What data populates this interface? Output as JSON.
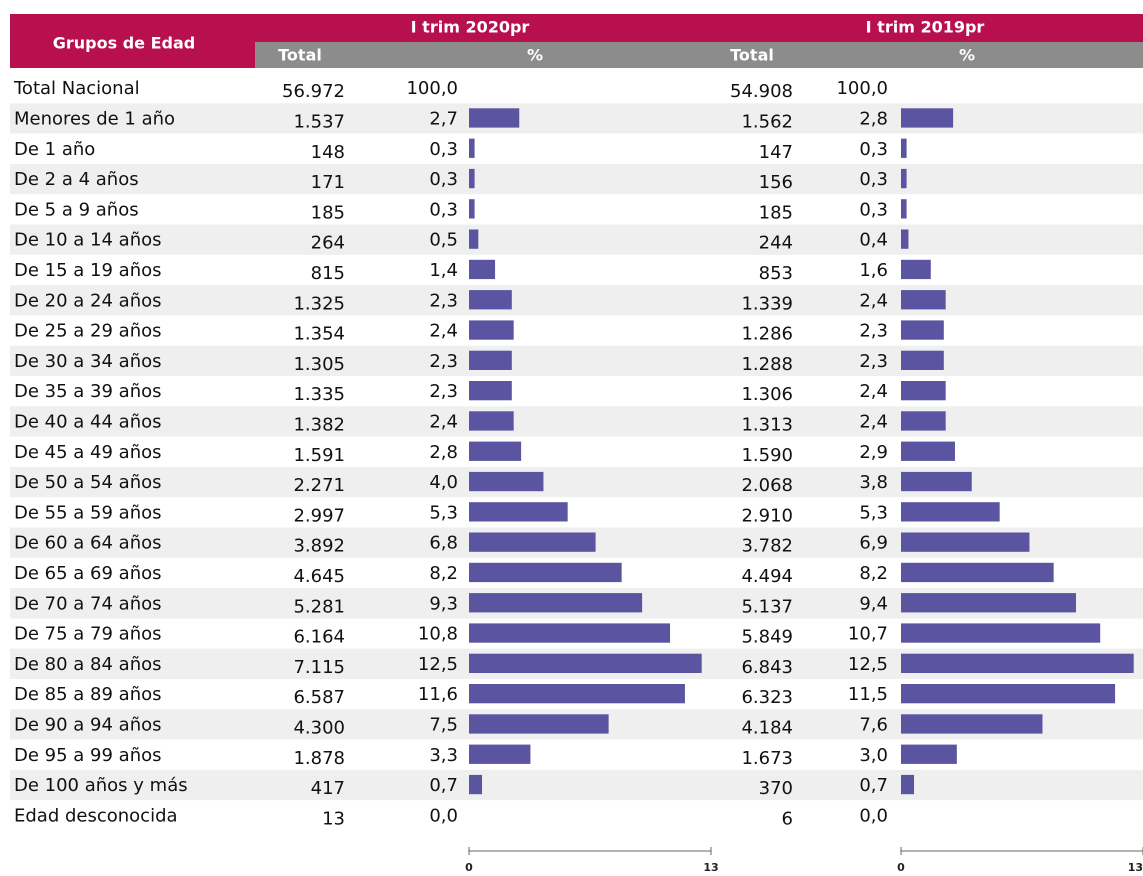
{
  "table": {
    "header": {
      "group": "Grupos de Edad",
      "period_2020": "I trim 2020pr",
      "period_2019": "I trim 2019pr",
      "total": "Total",
      "pct": "%"
    },
    "bar_axis_ticks": [
      0,
      13
    ],
    "bar_color": "#5b55a1",
    "rows": [
      {
        "group": "Total Nacional",
        "total_2020": "56.972",
        "pct_2020": 100,
        "pct_2020_label": "100,0",
        "total_2019": "54.908",
        "pct_2019": 100,
        "pct_2019_label": "100,0"
      },
      {
        "group": "Menores de 1 año",
        "total_2020": "1.537",
        "pct_2020": 2.7,
        "pct_2020_label": "2,7",
        "total_2019": "1.562",
        "pct_2019": 2.8,
        "pct_2019_label": "2,8"
      },
      {
        "group": "De 1 año",
        "total_2020": "148",
        "pct_2020": 0.3,
        "pct_2020_label": "0,3",
        "total_2019": "147",
        "pct_2019": 0.3,
        "pct_2019_label": "0,3"
      },
      {
        "group": "De 2 a 4 años",
        "total_2020": "171",
        "pct_2020": 0.3,
        "pct_2020_label": "0,3",
        "total_2019": "156",
        "pct_2019": 0.3,
        "pct_2019_label": "0,3"
      },
      {
        "group": "De 5 a 9 años",
        "total_2020": "185",
        "pct_2020": 0.3,
        "pct_2020_label": "0,3",
        "total_2019": "185",
        "pct_2019": 0.3,
        "pct_2019_label": "0,3"
      },
      {
        "group": "De 10 a 14 años",
        "total_2020": "264",
        "pct_2020": 0.5,
        "pct_2020_label": "0,5",
        "total_2019": "244",
        "pct_2019": 0.4,
        "pct_2019_label": "0,4"
      },
      {
        "group": "De 15 a 19 años",
        "total_2020": "815",
        "pct_2020": 1.4,
        "pct_2020_label": "1,4",
        "total_2019": "853",
        "pct_2019": 1.6,
        "pct_2019_label": "1,6"
      },
      {
        "group": "De 20 a 24 años",
        "total_2020": "1.325",
        "pct_2020": 2.3,
        "pct_2020_label": "2,3",
        "total_2019": "1.339",
        "pct_2019": 2.4,
        "pct_2019_label": "2,4"
      },
      {
        "group": "De 25 a 29 años",
        "total_2020": "1.354",
        "pct_2020": 2.4,
        "pct_2020_label": "2,4",
        "total_2019": "1.286",
        "pct_2019": 2.3,
        "pct_2019_label": "2,3"
      },
      {
        "group": "De 30 a 34 años",
        "total_2020": "1.305",
        "pct_2020": 2.3,
        "pct_2020_label": "2,3",
        "total_2019": "1.288",
        "pct_2019": 2.3,
        "pct_2019_label": "2,3"
      },
      {
        "group": "De 35 a 39 años",
        "total_2020": "1.335",
        "pct_2020": 2.3,
        "pct_2020_label": "2,3",
        "total_2019": "1.306",
        "pct_2019": 2.4,
        "pct_2019_label": "2,4"
      },
      {
        "group": "De 40 a 44 años",
        "total_2020": "1.382",
        "pct_2020": 2.4,
        "pct_2020_label": "2,4",
        "total_2019": "1.313",
        "pct_2019": 2.4,
        "pct_2019_label": "2,4"
      },
      {
        "group": "De 45 a 49 años",
        "total_2020": "1.591",
        "pct_2020": 2.8,
        "pct_2020_label": "2,8",
        "total_2019": "1.590",
        "pct_2019": 2.9,
        "pct_2019_label": "2,9"
      },
      {
        "group": "De 50 a 54 años",
        "total_2020": "2.271",
        "pct_2020": 4.0,
        "pct_2020_label": "4,0",
        "total_2019": "2.068",
        "pct_2019": 3.8,
        "pct_2019_label": "3,8"
      },
      {
        "group": "De 55 a 59 años",
        "total_2020": "2.997",
        "pct_2020": 5.3,
        "pct_2020_label": "5,3",
        "total_2019": "2.910",
        "pct_2019": 5.3,
        "pct_2019_label": "5,3"
      },
      {
        "group": "De 60 a 64 años",
        "total_2020": "3.892",
        "pct_2020": 6.8,
        "pct_2020_label": "6,8",
        "total_2019": "3.782",
        "pct_2019": 6.9,
        "pct_2019_label": "6,9"
      },
      {
        "group": "De 65 a 69 años",
        "total_2020": "4.645",
        "pct_2020": 8.2,
        "pct_2020_label": "8,2",
        "total_2019": "4.494",
        "pct_2019": 8.2,
        "pct_2019_label": "8,2"
      },
      {
        "group": "De 70 a 74 años",
        "total_2020": "5.281",
        "pct_2020": 9.3,
        "pct_2020_label": "9,3",
        "total_2019": "5.137",
        "pct_2019": 9.4,
        "pct_2019_label": "9,4"
      },
      {
        "group": "De 75 a 79 años",
        "total_2020": "6.164",
        "pct_2020": 10.8,
        "pct_2020_label": "10,8",
        "total_2019": "5.849",
        "pct_2019": 10.7,
        "pct_2019_label": "10,7"
      },
      {
        "group": "De 80 a 84 años",
        "total_2020": "7.115",
        "pct_2020": 12.5,
        "pct_2020_label": "12,5",
        "total_2019": "6.843",
        "pct_2019": 12.5,
        "pct_2019_label": "12,5"
      },
      {
        "group": "De 85 a 89 años",
        "total_2020": "6.587",
        "pct_2020": 11.6,
        "pct_2020_label": "11,6",
        "total_2019": "6.323",
        "pct_2019": 11.5,
        "pct_2019_label": "11,5"
      },
      {
        "group": "De 90 a 94 años",
        "total_2020": "4.300",
        "pct_2020": 7.5,
        "pct_2020_label": "7,5",
        "total_2019": "4.184",
        "pct_2019": 7.6,
        "pct_2019_label": "7,6"
      },
      {
        "group": "De 95 a 99 años",
        "total_2020": "1.878",
        "pct_2020": 3.3,
        "pct_2020_label": "3,3",
        "total_2019": "1.673",
        "pct_2019": 3.0,
        "pct_2019_label": "3,0"
      },
      {
        "group": "De 100 años y más",
        "total_2020": "417",
        "pct_2020": 0.7,
        "pct_2020_label": "0,7",
        "total_2019": "370",
        "pct_2019": 0.7,
        "pct_2019_label": "0,7"
      },
      {
        "group": "Edad desconocida",
        "total_2020": "13",
        "pct_2020": 0.0,
        "pct_2020_label": "0,0",
        "total_2019": "6",
        "pct_2019": 0.0,
        "pct_2019_label": "0,0"
      }
    ]
  }
}
